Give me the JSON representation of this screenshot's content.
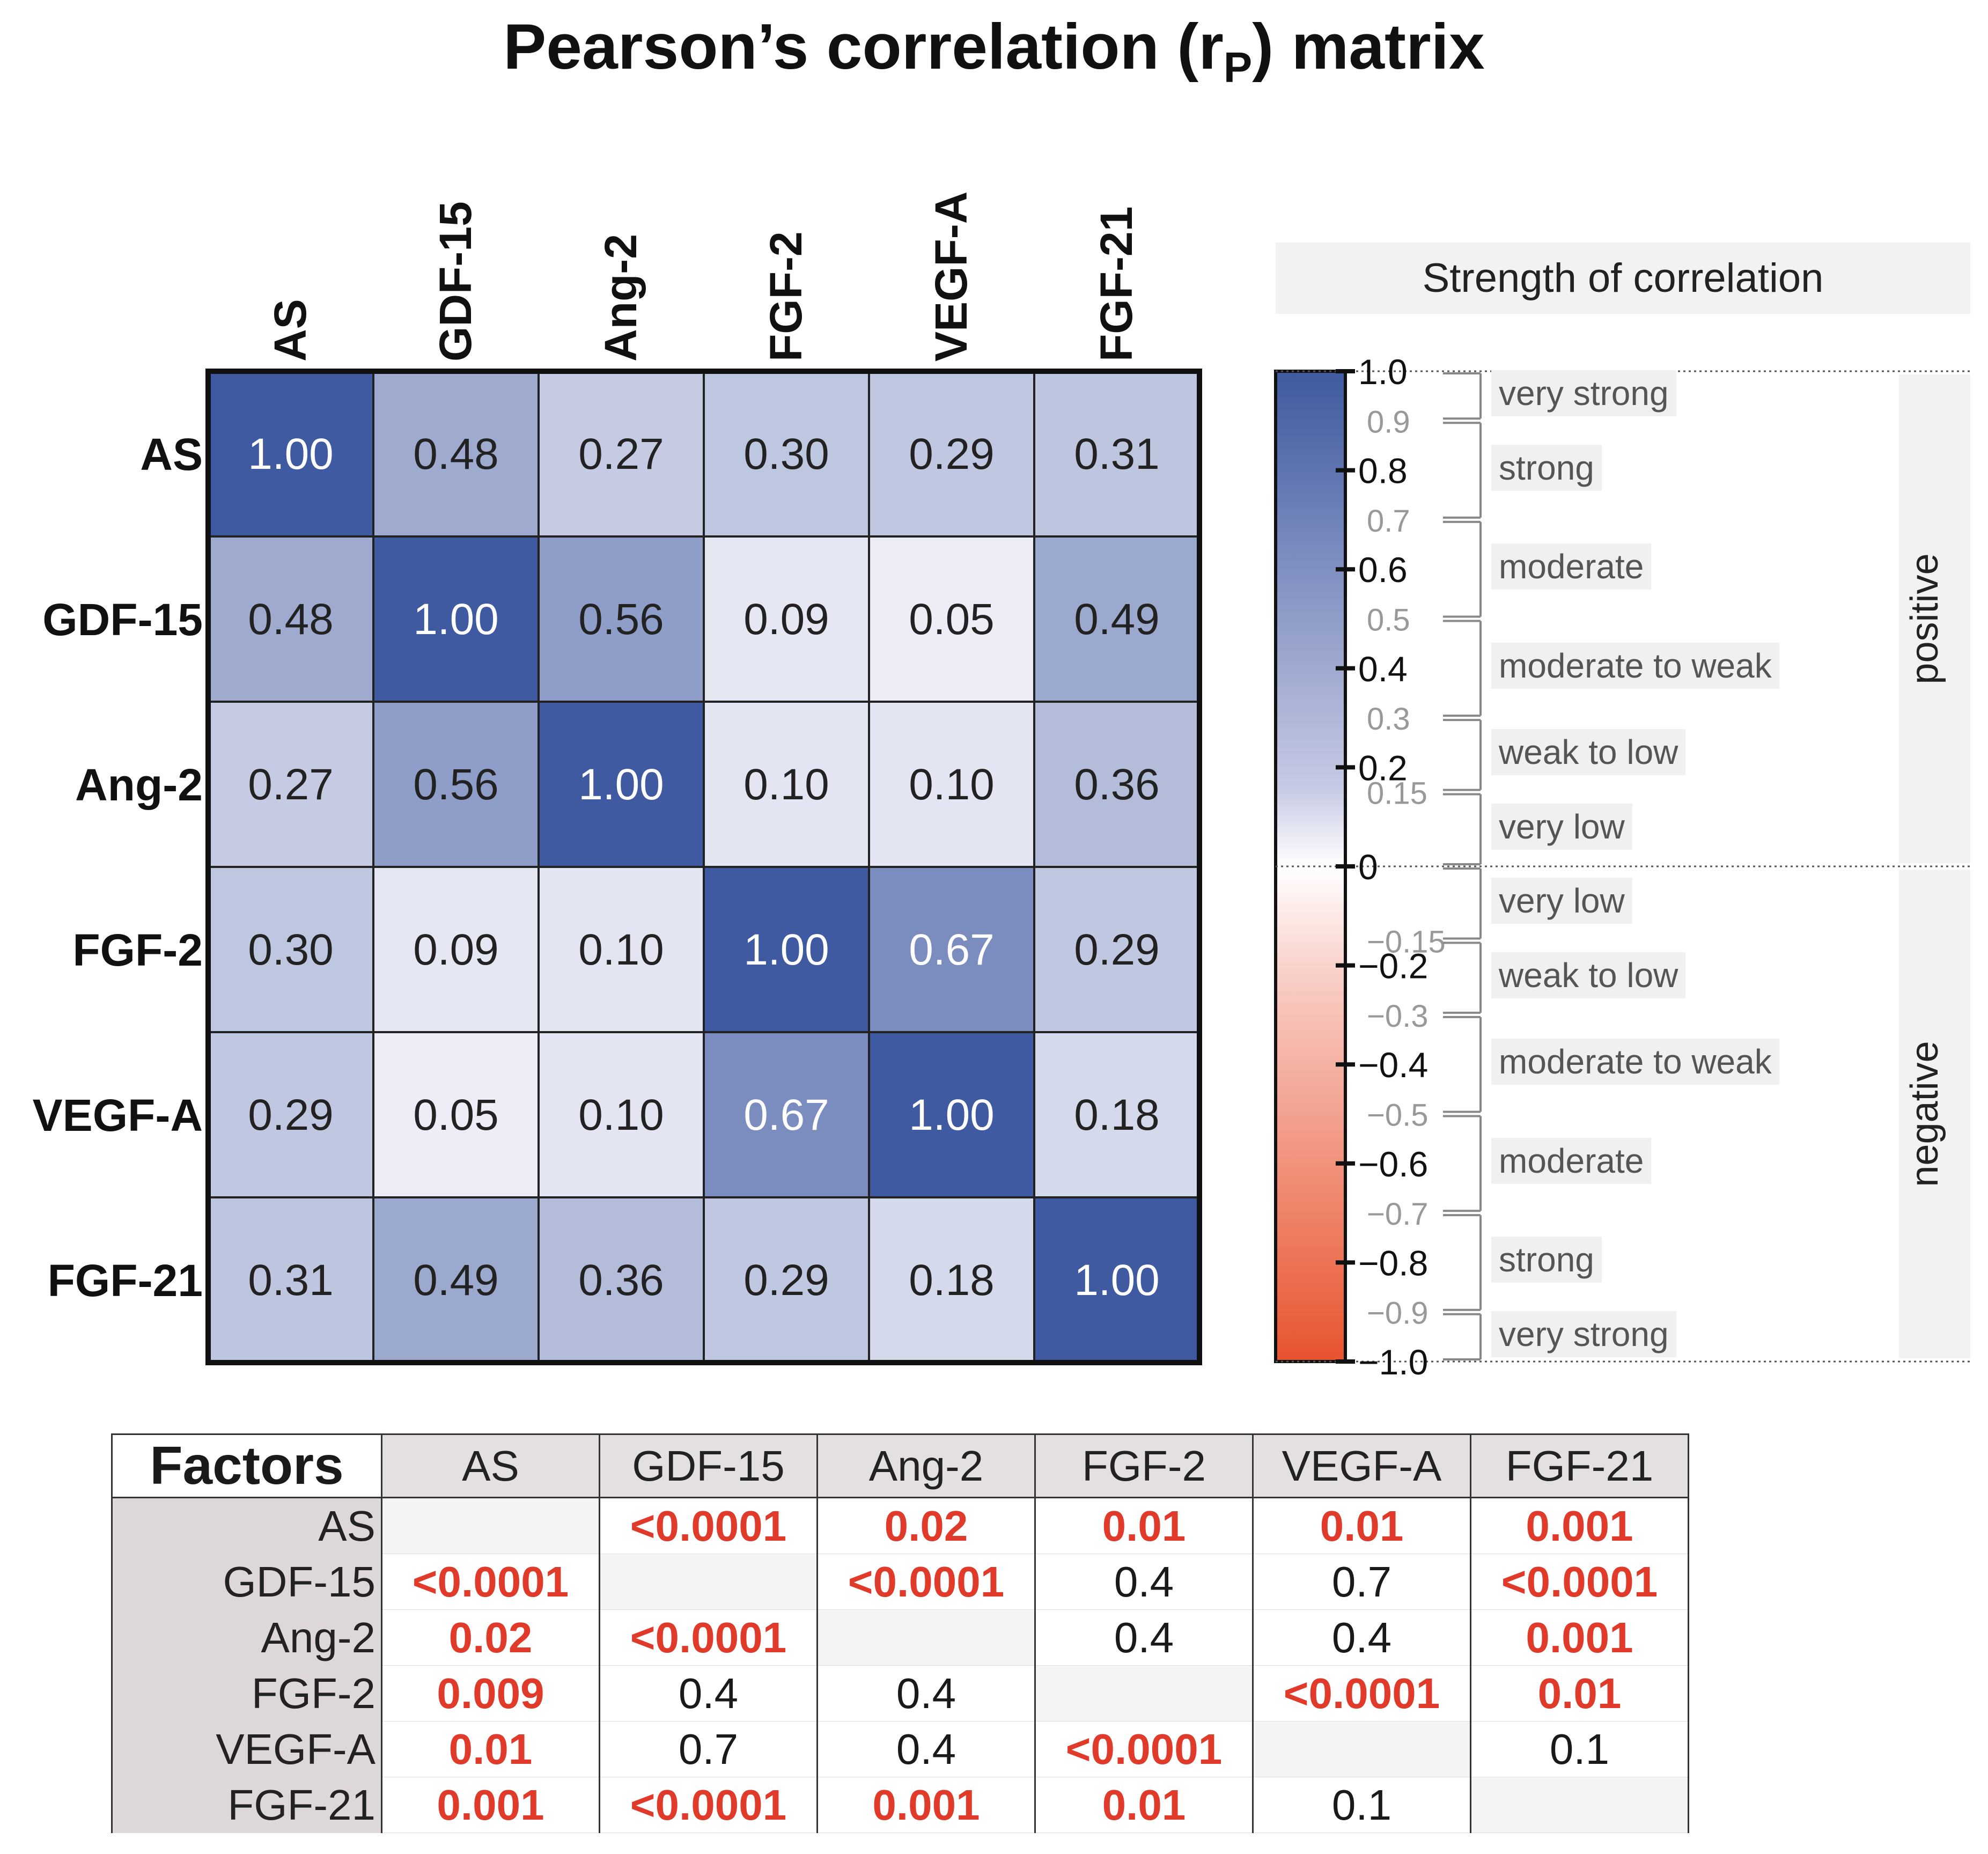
{
  "title": "Pearson’s correlation (r",
  "title_sub": "P",
  "title_end": ") matrix",
  "chart_data": {
    "type": "heatmap",
    "title": "Pearson’s correlation (rP) matrix",
    "labels": [
      "AS",
      "GDF-15",
      "Ang-2",
      "FGF-2",
      "VEGF-A",
      "FGF-21"
    ],
    "values": [
      [
        "1.00",
        "0.48",
        "0.27",
        "0.30",
        "0.29",
        "0.31"
      ],
      [
        "0.48",
        "1.00",
        "0.56",
        "0.09",
        "0.05",
        "0.49"
      ],
      [
        "0.27",
        "0.56",
        "1.00",
        "0.10",
        "0.10",
        "0.36"
      ],
      [
        "0.30",
        "0.09",
        "0.10",
        "1.00",
        "0.67",
        "0.29"
      ],
      [
        "0.29",
        "0.05",
        "0.10",
        "0.67",
        "1.00",
        "0.18"
      ],
      [
        "0.31",
        "0.49",
        "0.36",
        "0.29",
        "0.18",
        "1.00"
      ]
    ],
    "color_scale": {
      "min": -1.0,
      "max": 1.0,
      "positive_color": "#3f5aa0",
      "negative_color": "#e8532d",
      "zero_color": "#ffffff"
    }
  },
  "legend": {
    "title": "Strength of correlation",
    "major_ticks": [
      "1.0",
      "0.8",
      "0.6",
      "0.4",
      "0.2",
      "0",
      "−0.2",
      "−0.4",
      "−0.6",
      "−0.8",
      "−1.0"
    ],
    "major_values": [
      1.0,
      0.8,
      0.6,
      0.4,
      0.2,
      0,
      -0.2,
      -0.4,
      -0.6,
      -0.8,
      -1.0
    ],
    "minor_ticks": [
      "0.9",
      "0.7",
      "0.5",
      "0.3",
      "0.15",
      "−0.15",
      "−0.3",
      "−0.5",
      "−0.7",
      "−0.9"
    ],
    "minor_values": [
      0.9,
      0.7,
      0.5,
      0.3,
      0.15,
      -0.15,
      -0.3,
      -0.5,
      -0.7,
      -0.9
    ],
    "positive_label": "positive",
    "negative_label": "negative",
    "categories_positive": [
      "very strong",
      "strong",
      "moderate",
      "moderate to weak",
      "weak to low",
      "very low"
    ],
    "categories_negative": [
      "very low",
      "weak to low",
      "moderate to weak",
      "moderate",
      "strong",
      "very strong"
    ]
  },
  "pvalue_table": {
    "corner": "Factors",
    "columns": [
      "AS",
      "GDF-15",
      "Ang-2",
      "FGF-2",
      "VEGF-A",
      "FGF-21"
    ],
    "rows": [
      {
        "label": "AS",
        "cells": [
          "",
          "<0.0001",
          "0.02",
          "0.01",
          "0.01",
          "0.001"
        ],
        "sig": [
          false,
          true,
          true,
          true,
          true,
          true
        ]
      },
      {
        "label": "GDF-15",
        "cells": [
          "<0.0001",
          "",
          "<0.0001",
          "0.4",
          "0.7",
          "<0.0001"
        ],
        "sig": [
          true,
          false,
          true,
          false,
          false,
          true
        ]
      },
      {
        "label": "Ang-2",
        "cells": [
          "0.02",
          "<0.0001",
          "",
          "0.4",
          "0.4",
          "0.001"
        ],
        "sig": [
          true,
          true,
          false,
          false,
          false,
          true
        ]
      },
      {
        "label": "FGF-2",
        "cells": [
          "0.009",
          "0.4",
          "0.4",
          "",
          "<0.0001",
          "0.01"
        ],
        "sig": [
          true,
          false,
          false,
          false,
          true,
          true
        ]
      },
      {
        "label": "VEGF-A",
        "cells": [
          "0.01",
          "0.7",
          "0.4",
          "<0.0001",
          "",
          "0.1"
        ],
        "sig": [
          true,
          false,
          false,
          true,
          false,
          false
        ]
      },
      {
        "label": "FGF-21",
        "cells": [
          "0.001",
          "<0.0001",
          "0.001",
          "0.01",
          "0.1",
          ""
        ],
        "sig": [
          true,
          true,
          true,
          true,
          false,
          false
        ]
      }
    ]
  }
}
